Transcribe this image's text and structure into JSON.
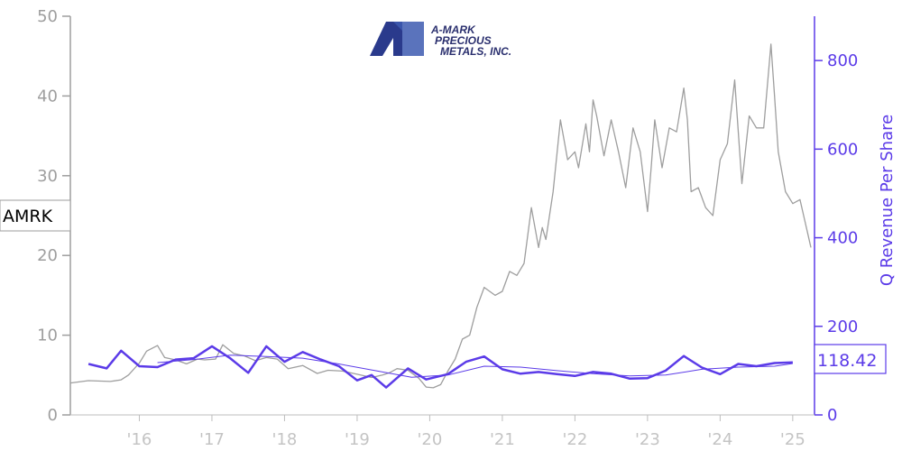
{
  "chart_data": {
    "type": "line",
    "ticker": "AMRK",
    "logo": {
      "lines": [
        "A-MARK",
        "PRECIOUS",
        "METALS, INC."
      ]
    },
    "ylabel_right": "Q Revenue Per Share",
    "last_value_label": "118.42",
    "ylim_left": [
      0,
      50
    ],
    "ylim_right": [
      0,
      900
    ],
    "xlim": [
      2015.05,
      2025.3
    ],
    "left_ticks": [
      "0",
      "10",
      "20",
      "30",
      "40",
      "50"
    ],
    "left_tick_values": [
      0,
      10,
      20,
      30,
      40,
      50
    ],
    "right_ticks": [
      "0",
      "200",
      "400",
      "600",
      "800"
    ],
    "right_tick_values": [
      0,
      200,
      400,
      600,
      800
    ],
    "x_ticks": [
      "'16",
      "'17",
      "'18",
      "'19",
      "'20",
      "'21",
      "'22",
      "'23",
      "'24",
      "'25"
    ],
    "x_tick_values": [
      2016,
      2017,
      2018,
      2019,
      2020,
      2021,
      2022,
      2023,
      2024,
      2025
    ],
    "colors": {
      "price": "#9e9e9e",
      "revenue": "#5b3be8",
      "axis_left": "#9e9e9e",
      "axis_right": "#5b3be8"
    },
    "series": [
      {
        "axis": "left",
        "x": [
          2015.05,
          2015.3,
          2015.6,
          2015.75,
          2015.85,
          2016.0,
          2016.1,
          2016.25,
          2016.35,
          2016.5,
          2016.65,
          2016.8,
          2016.9,
          2017.05,
          2017.15,
          2017.3,
          2017.45,
          2017.6,
          2017.75,
          2017.9,
          2018.05,
          2018.25,
          2018.45,
          2018.6,
          2018.8,
          2019.0,
          2019.2,
          2019.35,
          2019.45,
          2019.55,
          2019.7,
          2019.85,
          2019.95,
          2020.05,
          2020.15,
          2020.25,
          2020.35,
          2020.45,
          2020.55,
          2020.65,
          2020.75,
          2020.9,
          2021.0,
          2021.1,
          2021.2,
          2021.3,
          2021.4,
          2021.5,
          2021.55,
          2021.6,
          2021.7,
          2021.8,
          2021.9,
          2022.0,
          2022.05,
          2022.15,
          2022.2,
          2022.25,
          2022.3,
          2022.4,
          2022.5,
          2022.6,
          2022.7,
          2022.8,
          2022.9,
          2023.0,
          2023.05,
          2023.1,
          2023.2,
          2023.3,
          2023.4,
          2023.5,
          2023.55,
          2023.6,
          2023.7,
          2023.8,
          2023.9,
          2024.0,
          2024.1,
          2024.2,
          2024.3,
          2024.4,
          2024.5,
          2024.6,
          2024.7,
          2024.75,
          2024.8,
          2024.9,
          2025.0,
          2025.1,
          2025.2,
          2025.25
        ],
        "values": [
          4.0,
          4.3,
          4.2,
          4.4,
          5.0,
          6.5,
          8.0,
          8.7,
          7.2,
          6.9,
          6.4,
          7.0,
          6.9,
          7.0,
          8.8,
          7.7,
          7.4,
          6.8,
          7.2,
          7.0,
          5.8,
          6.2,
          5.2,
          5.6,
          5.5,
          5.1,
          4.7,
          5.0,
          5.3,
          5.8,
          5.6,
          4.6,
          3.5,
          3.4,
          3.8,
          5.5,
          7.0,
          9.5,
          10.0,
          13.5,
          16.0,
          15.0,
          15.5,
          18.0,
          17.5,
          19.0,
          26.0,
          21.0,
          23.5,
          22.0,
          28.0,
          37.0,
          32.0,
          33.0,
          31.0,
          36.5,
          33.0,
          39.5,
          37.5,
          32.5,
          37.0,
          33.0,
          28.5,
          36.0,
          33.0,
          25.5,
          31.0,
          37.0,
          31.0,
          36.0,
          35.5,
          41.0,
          37.0,
          28.0,
          28.5,
          26.0,
          25.0,
          32.0,
          34.0,
          42.0,
          29.0,
          37.5,
          36.0,
          36.0,
          46.5,
          40.0,
          33.0,
          28.0,
          26.5,
          27.0,
          23.0,
          21.0
        ]
      },
      {
        "axis": "right",
        "x": [
          2015.3,
          2015.55,
          2015.75,
          2016.0,
          2016.25,
          2016.5,
          2016.75,
          2017.0,
          2017.25,
          2017.5,
          2017.75,
          2018.0,
          2018.25,
          2018.5,
          2018.75,
          2019.0,
          2019.2,
          2019.4,
          2019.7,
          2019.95,
          2020.25,
          2020.5,
          2020.75,
          2021.0,
          2021.25,
          2021.5,
          2021.75,
          2022.0,
          2022.25,
          2022.5,
          2022.75,
          2023.0,
          2023.25,
          2023.5,
          2023.75,
          2024.0,
          2024.25,
          2024.5,
          2024.75,
          2025.0
        ],
        "values": [
          115,
          105,
          145,
          110,
          108,
          125,
          128,
          155,
          128,
          95,
          155,
          120,
          142,
          125,
          110,
          78,
          90,
          62,
          105,
          80,
          92,
          120,
          132,
          103,
          93,
          97,
          92,
          88,
          97,
          93,
          82,
          83,
          100,
          133,
          107,
          92,
          115,
          110,
          117,
          118.42
        ]
      },
      {
        "axis": "right",
        "x": [
          2016.25,
          2016.75,
          2017.25,
          2017.75,
          2018.25,
          2018.75,
          2019.25,
          2019.75,
          2020.25,
          2020.75,
          2021.25,
          2021.75,
          2022.25,
          2022.75,
          2023.25,
          2023.75,
          2024.25,
          2024.75,
          2025.0
        ],
        "values": [
          118,
          125,
          135,
          132,
          128,
          115,
          100,
          85,
          90,
          110,
          108,
          100,
          93,
          88,
          90,
          103,
          108,
          110,
          116
        ]
      }
    ]
  }
}
